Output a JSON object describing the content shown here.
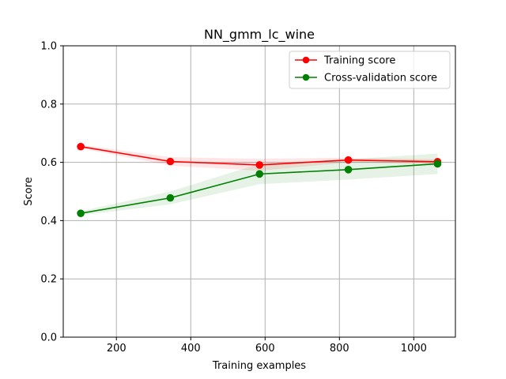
{
  "chart_data": {
    "type": "line",
    "title": "NN_gmm_lc_wine",
    "xlabel": "Training examples",
    "ylabel": "Score",
    "xlim": [
      57,
      1112
    ],
    "ylim": [
      0.0,
      1.0
    ],
    "xticks": [
      200,
      400,
      600,
      800,
      1000
    ],
    "yticks": [
      0.0,
      0.2,
      0.4,
      0.6,
      0.8,
      1.0
    ],
    "xtick_labels": [
      "200",
      "400",
      "600",
      "800",
      "1000"
    ],
    "ytick_labels": [
      "0.0",
      "0.2",
      "0.4",
      "0.6",
      "0.8",
      "1.0"
    ],
    "grid": true,
    "legend_position": "top-right",
    "x": [
      104,
      345,
      585,
      824,
      1064
    ],
    "series": [
      {
        "name": "Training score",
        "color": "#ff0000",
        "values": [
          0.654,
          0.603,
          0.591,
          0.608,
          0.602
        ],
        "band_upper": [
          0.66,
          0.618,
          0.612,
          0.616,
          0.61
        ],
        "band_lower": [
          0.648,
          0.589,
          0.571,
          0.6,
          0.595
        ]
      },
      {
        "name": "Cross-validation score",
        "color": "#008000",
        "values": [
          0.425,
          0.478,
          0.56,
          0.575,
          0.595
        ],
        "band_upper": [
          0.432,
          0.5,
          0.595,
          0.61,
          0.63
        ],
        "band_lower": [
          0.418,
          0.456,
          0.525,
          0.541,
          0.56
        ]
      }
    ]
  }
}
